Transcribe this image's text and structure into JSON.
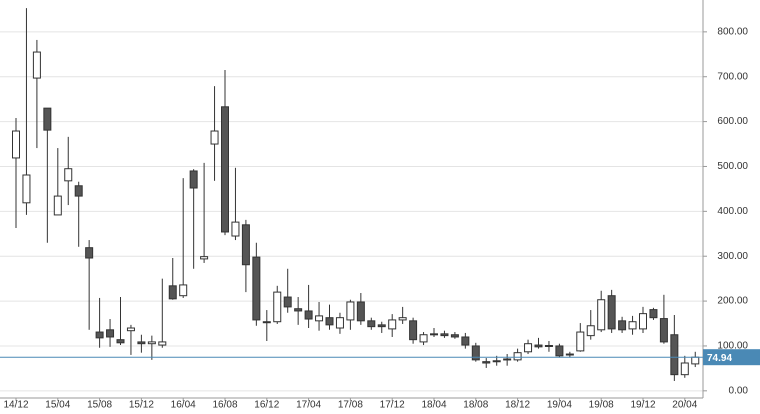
{
  "chart_data": {
    "type": "candlestick",
    "categories": [
      "14/12",
      null,
      null,
      null,
      "15/04",
      null,
      null,
      null,
      "15/08",
      null,
      null,
      null,
      "15/12",
      null,
      null,
      null,
      "16/04",
      null,
      null,
      null,
      "16/08",
      null,
      null,
      null,
      "16/12",
      null,
      null,
      null,
      "17/04",
      null,
      null,
      null,
      "17/08",
      null,
      null,
      null,
      "17/12",
      null,
      null,
      null,
      "18/04",
      null,
      null,
      null,
      "18/08",
      null,
      null,
      null,
      "18/12",
      null,
      null,
      null,
      "19/04",
      null,
      null,
      null,
      "19/08",
      null,
      null,
      null,
      "19/12",
      null,
      null,
      null,
      "20/04",
      null
    ],
    "open": [
      519,
      419,
      697,
      630,
      392,
      468,
      457,
      319,
      131,
      136,
      114,
      134,
      109,
      105,
      102,
      234,
      212,
      490,
      294,
      550,
      633,
      345,
      370,
      298,
      152,
      154,
      209,
      183,
      178,
      156,
      163,
      140,
      158,
      198,
      156,
      147,
      138,
      158,
      156,
      109,
      125,
      127,
      125,
      120,
      100,
      65,
      65,
      69,
      69,
      87,
      102,
      100,
      100,
      80,
      89,
      123,
      136,
      212,
      156,
      138,
      138,
      181,
      161,
      125,
      36,
      60
    ],
    "high": [
      608,
      853,
      782,
      630,
      541,
      566,
      466,
      336,
      207,
      160,
      209,
      147,
      125,
      123,
      250,
      296,
      474,
      494,
      508,
      679,
      715,
      497,
      381,
      330,
      180,
      234,
      272,
      209,
      236,
      198,
      192,
      174,
      203,
      218,
      163,
      154,
      171,
      187,
      163,
      131,
      140,
      134,
      131,
      129,
      107,
      73,
      78,
      82,
      94,
      114,
      118,
      111,
      105,
      87,
      151,
      180,
      223,
      225,
      165,
      167,
      187,
      185,
      214,
      169,
      78,
      87
    ],
    "low": [
      363,
      392,
      541,
      330,
      392,
      414,
      321,
      136,
      96,
      98,
      102,
      80,
      85,
      69,
      96,
      203,
      207,
      272,
      285,
      468,
      347,
      336,
      220,
      145,
      111,
      149,
      174,
      147,
      140,
      134,
      136,
      127,
      136,
      147,
      136,
      129,
      120,
      149,
      105,
      102,
      120,
      118,
      116,
      94,
      65,
      51,
      56,
      56,
      65,
      82,
      94,
      87,
      74,
      74,
      87,
      114,
      131,
      129,
      129,
      125,
      129,
      158,
      105,
      22,
      29,
      53
    ],
    "close": [
      579,
      481,
      755,
      581,
      434,
      495,
      434,
      296,
      118,
      120,
      107,
      140,
      105,
      109,
      109,
      205,
      236,
      452,
      299,
      579,
      354,
      376,
      281,
      158,
      154,
      220,
      187,
      178,
      160,
      167,
      147,
      163,
      198,
      156,
      143,
      143,
      158,
      163,
      114,
      125,
      127,
      123,
      120,
      102,
      69,
      62,
      67,
      71,
      85,
      105,
      98,
      101,
      78,
      82,
      131,
      145,
      203,
      138,
      136,
      154,
      172,
      163,
      109,
      36,
      62,
      74.94
    ],
    "up_color": "#ffffff",
    "down_color": "#555555",
    "outline_color": "#333333",
    "last_color": "#4a89b5",
    "ylim": [
      -16,
      871
    ],
    "yticks": [
      {
        "value": 0,
        "label": "0.00"
      },
      {
        "value": 100,
        "label": "100.00"
      },
      {
        "value": 200,
        "label": "200.00"
      },
      {
        "value": 300,
        "label": "300.00"
      },
      {
        "value": 400,
        "label": "400.00"
      },
      {
        "value": 500,
        "label": "500.00"
      },
      {
        "value": 600,
        "label": "600.00"
      },
      {
        "value": 700,
        "label": "700.00"
      },
      {
        "value": 800,
        "label": "800.00"
      }
    ],
    "grid": true
  }
}
